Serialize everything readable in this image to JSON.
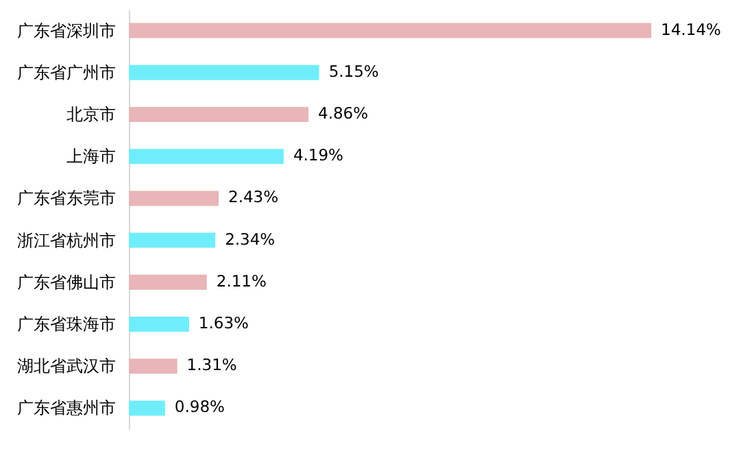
{
  "chart_data": {
    "type": "bar",
    "orientation": "horizontal",
    "categories": [
      "广东省深圳市",
      "广东省广州市",
      "北京市",
      "上海市",
      "广东省东莞市",
      "浙江省杭州市",
      "广东省佛山市",
      "广东省珠海市",
      "湖北省武汉市",
      "广东省惠州市"
    ],
    "values": [
      14.14,
      5.15,
      4.86,
      4.19,
      2.43,
      2.34,
      2.11,
      1.63,
      1.31,
      0.98
    ],
    "value_labels": [
      "14.14%",
      "5.15%",
      "4.86%",
      "4.19%",
      "2.43%",
      "2.34%",
      "2.11%",
      "1.63%",
      "1.31%",
      "0.98%"
    ],
    "colors": [
      "#e8b5b8",
      "#70edfb",
      "#e8b5b8",
      "#70edfb",
      "#e8b5b8",
      "#70edfb",
      "#e8b5b8",
      "#70edfb",
      "#e8b5b8",
      "#70edfb"
    ]
  }
}
